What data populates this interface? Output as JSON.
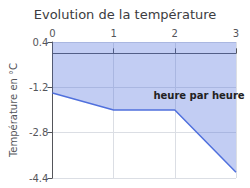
{
  "chart_data": {
    "type": "area",
    "title": "Evolution de la température",
    "ylabel": "Température en °C",
    "x": [
      0,
      1,
      2,
      3
    ],
    "values": [
      -1.4,
      -2.0,
      -2.0,
      -4.2
    ],
    "xlim": [
      0,
      3
    ],
    "xticks": [
      0,
      1,
      2,
      3
    ],
    "ylim": [
      -4.4,
      0.4
    ],
    "yticks": [
      0.4,
      -1.2,
      -2.8,
      -4.4
    ],
    "grid": true,
    "annotations": [
      {
        "text": "heure par heure",
        "x": 1.65,
        "y": -1.3
      }
    ]
  }
}
